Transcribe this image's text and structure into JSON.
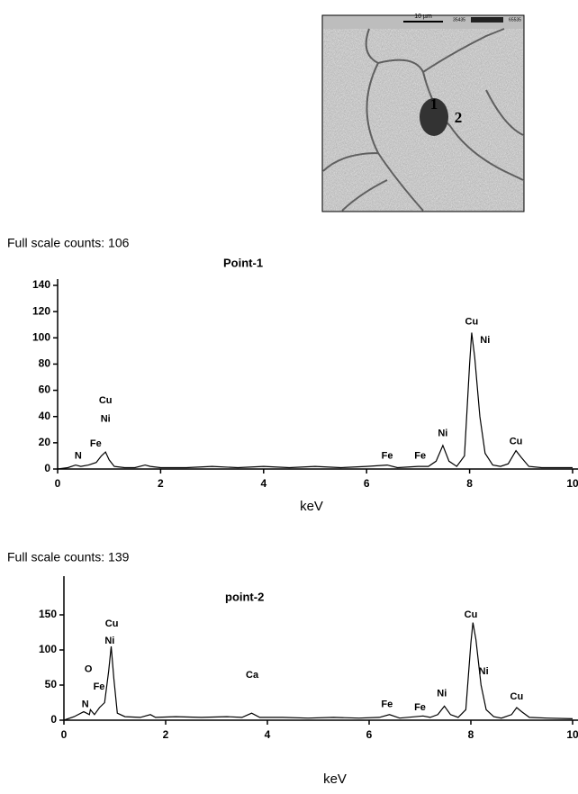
{
  "image": {
    "scale_label": "10 µm",
    "range_low": "35435",
    "range_high": "65535",
    "point_labels": [
      "1",
      "2"
    ]
  },
  "chart_data": [
    {
      "type": "line",
      "header": "Full scale counts: 106",
      "title": "Point-1",
      "xlabel": "keV",
      "color": "#000000",
      "x": [
        0,
        0.2,
        0.35,
        0.45,
        0.6,
        0.75,
        0.85,
        0.93,
        1.0,
        1.1,
        1.3,
        1.5,
        1.7,
        1.8,
        2.0,
        2.5,
        3.0,
        3.5,
        4.0,
        4.5,
        5.0,
        5.5,
        6.0,
        6.4,
        6.6,
        7.0,
        7.2,
        7.35,
        7.48,
        7.6,
        7.75,
        7.9,
        8.0,
        8.04,
        8.1,
        8.2,
        8.3,
        8.45,
        8.6,
        8.75,
        8.9,
        9.0,
        9.15,
        9.4,
        9.7,
        10
      ],
      "values": [
        0,
        1,
        3,
        2,
        3,
        5,
        10,
        13,
        7,
        2,
        1,
        1,
        3,
        2,
        1,
        1,
        2,
        1,
        2,
        1,
        2,
        1,
        2,
        3,
        1,
        2,
        2,
        6,
        18,
        6,
        2,
        10,
        80,
        104,
        85,
        40,
        12,
        3,
        2,
        4,
        14,
        9,
        2,
        1,
        1,
        1
      ],
      "xlim": [
        0,
        10
      ],
      "xticks": [
        0,
        2,
        4,
        6,
        8,
        10
      ],
      "ylim": [
        0,
        140
      ],
      "yticks": [
        0,
        20,
        40,
        60,
        80,
        100,
        120,
        140
      ],
      "annotations": [
        {
          "text": "N",
          "x": 0.4,
          "y": 10
        },
        {
          "text": "Fe",
          "x": 0.74,
          "y": 19
        },
        {
          "text": "Ni",
          "x": 0.93,
          "y": 38
        },
        {
          "text": "Cu",
          "x": 0.93,
          "y": 52
        },
        {
          "text": "Fe",
          "x": 6.4,
          "y": 10
        },
        {
          "text": "Fe",
          "x": 7.04,
          "y": 10
        },
        {
          "text": "Ni",
          "x": 7.48,
          "y": 27
        },
        {
          "text": "Cu",
          "x": 8.04,
          "y": 112
        },
        {
          "text": "Ni",
          "x": 8.3,
          "y": 98
        },
        {
          "text": "Cu",
          "x": 8.9,
          "y": 21
        }
      ]
    },
    {
      "type": "line",
      "header": "Full scale counts: 139",
      "title": "point-2",
      "xlabel": "keV",
      "color": "#000000",
      "x": [
        0,
        0.2,
        0.39,
        0.5,
        0.52,
        0.6,
        0.7,
        0.8,
        0.88,
        0.93,
        0.98,
        1.05,
        1.2,
        1.5,
        1.7,
        1.8,
        2.2,
        2.7,
        3.2,
        3.5,
        3.69,
        3.85,
        4.3,
        4.8,
        5.3,
        5.8,
        6.2,
        6.4,
        6.6,
        7.06,
        7.2,
        7.35,
        7.48,
        7.6,
        7.75,
        7.9,
        8.0,
        8.04,
        8.1,
        8.2,
        8.3,
        8.45,
        8.6,
        8.8,
        8.9,
        9.0,
        9.15,
        9.5,
        10
      ],
      "values": [
        0,
        5,
        12,
        8,
        15,
        8,
        18,
        25,
        70,
        105,
        60,
        10,
        5,
        4,
        8,
        4,
        5,
        4,
        5,
        4,
        10,
        4,
        4,
        3,
        4,
        3,
        4,
        8,
        3,
        6,
        4,
        8,
        20,
        8,
        4,
        15,
        110,
        139,
        115,
        50,
        15,
        5,
        3,
        8,
        18,
        12,
        4,
        3,
        2
      ],
      "xlim": [
        0,
        10
      ],
      "xticks": [
        0,
        2,
        4,
        6,
        8,
        10
      ],
      "ylim": [
        0,
        200
      ],
      "yticks": [
        0,
        50,
        100,
        150
      ],
      "annotations": [
        {
          "text": "N",
          "x": 0.42,
          "y": 22
        },
        {
          "text": "O",
          "x": 0.48,
          "y": 72
        },
        {
          "text": "Fe",
          "x": 0.69,
          "y": 47
        },
        {
          "text": "Ni",
          "x": 0.9,
          "y": 113
        },
        {
          "text": "Cu",
          "x": 0.94,
          "y": 137
        },
        {
          "text": "Ca",
          "x": 3.7,
          "y": 64
        },
        {
          "text": "Fe",
          "x": 6.35,
          "y": 22
        },
        {
          "text": "Fe",
          "x": 7.0,
          "y": 18
        },
        {
          "text": "Ni",
          "x": 7.43,
          "y": 38
        },
        {
          "text": "Cu",
          "x": 8.0,
          "y": 150
        },
        {
          "text": "Ni",
          "x": 8.25,
          "y": 69
        },
        {
          "text": "Cu",
          "x": 8.9,
          "y": 33
        }
      ]
    }
  ]
}
